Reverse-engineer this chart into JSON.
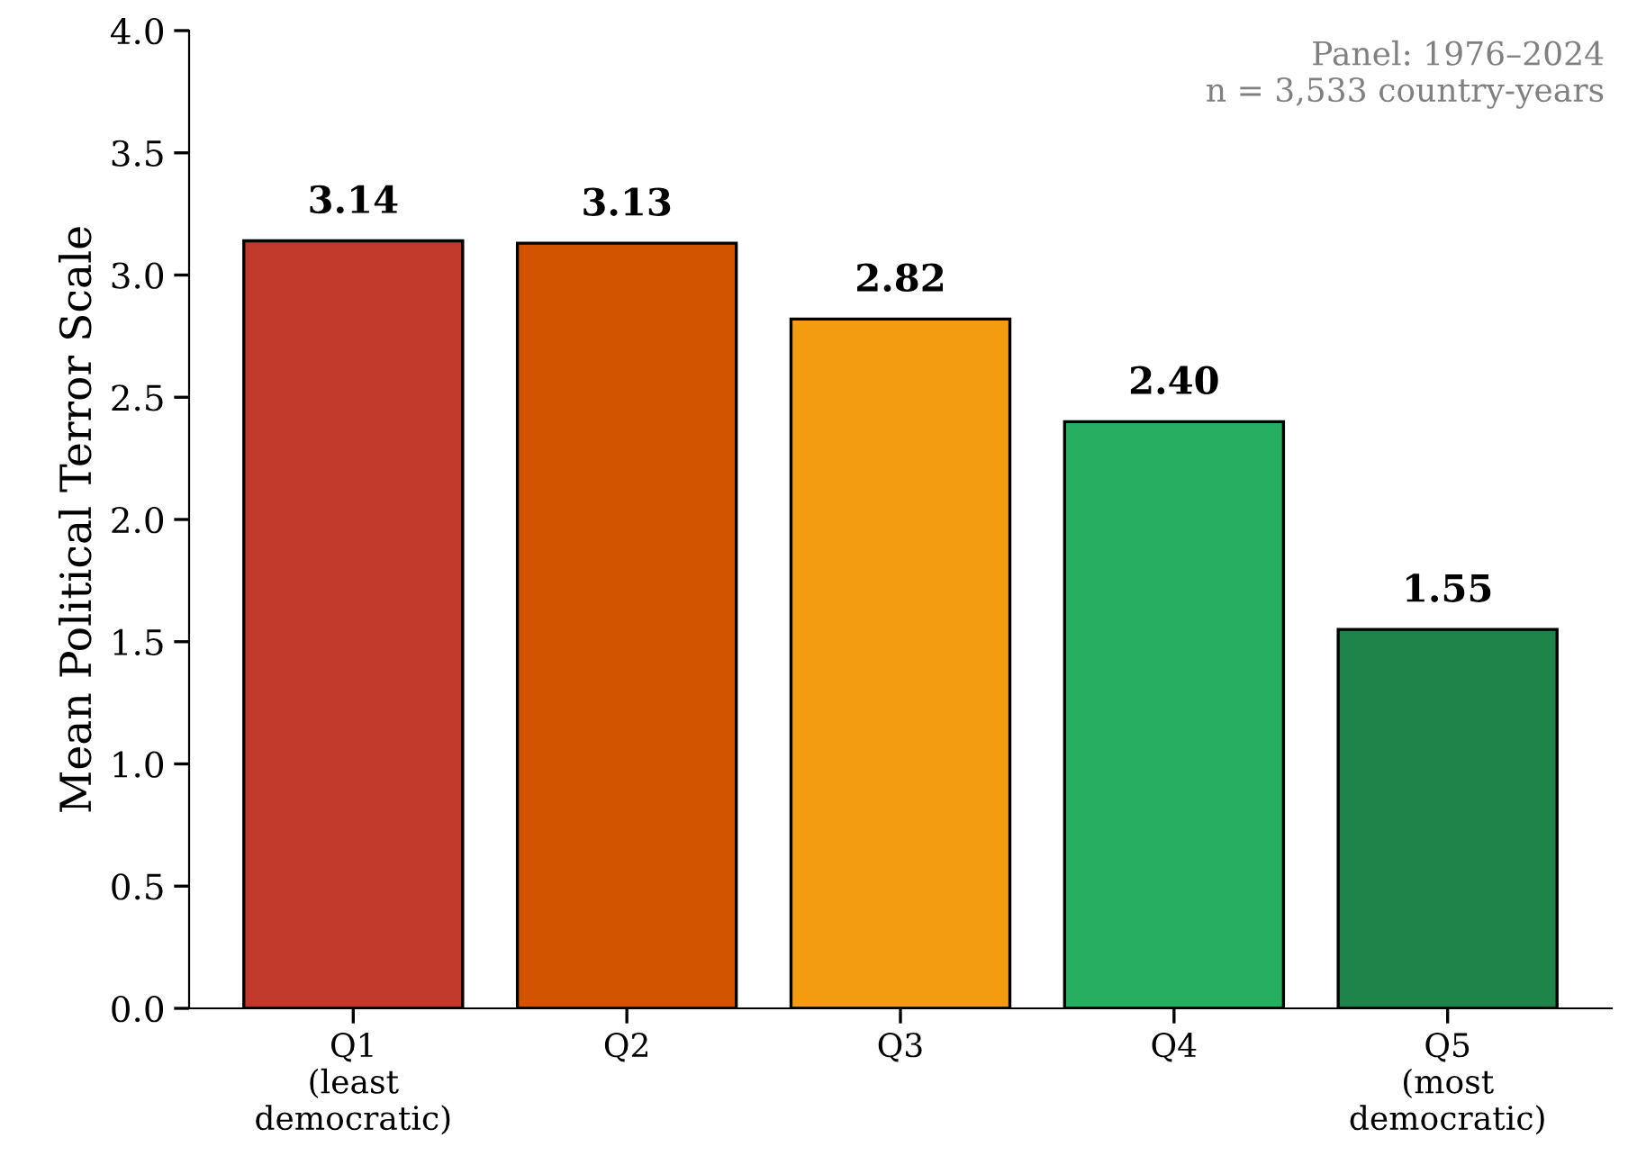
{
  "chart_data": {
    "type": "bar",
    "ylabel": "Mean Political Terror Scale",
    "categories": [
      "Q1\n(least\ndemocratic)",
      "Q2",
      "Q3",
      "Q4",
      "Q5\n(most\ndemocratic)"
    ],
    "values": [
      3.14,
      3.13,
      2.82,
      2.4,
      1.55
    ],
    "colors": [
      "#c0392b",
      "#d35400",
      "#f39c12",
      "#27ae60",
      "#1e8449"
    ],
    "value_labels": [
      "3.14",
      "3.13",
      "2.82",
      "2.40",
      "1.55"
    ],
    "ylim": [
      0,
      4.0
    ],
    "yticks": [
      {
        "value": 0,
        "label": "0.0"
      },
      {
        "value": 0.5,
        "label": "0.5"
      },
      {
        "value": 1.0,
        "label": "1.0"
      },
      {
        "value": 1.5,
        "label": "1.5"
      },
      {
        "value": 2.0,
        "label": "2.0"
      },
      {
        "value": 2.5,
        "label": "2.5"
      },
      {
        "value": 3.0,
        "label": "3.0"
      },
      {
        "value": 3.5,
        "label": "3.5"
      },
      {
        "value": 4.0,
        "label": "4.0"
      }
    ],
    "annotations": [
      "Panel: 1976–2024\nn = 3,533 country-years"
    ],
    "grid": false
  }
}
